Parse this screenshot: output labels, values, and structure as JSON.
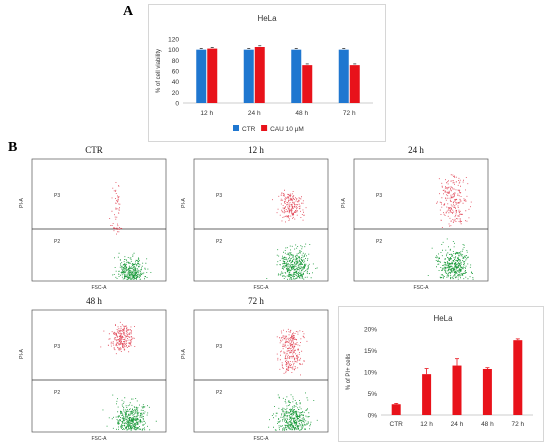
{
  "figure": {
    "panel_a_label": "A",
    "panel_b_label": "B",
    "flow_axis": {
      "x_label": "FSC-A",
      "y_label": "PI-A",
      "gate_upper": "P3",
      "gate_lower": "P2"
    }
  },
  "colors": {
    "blue": "#1f77d0",
    "red": "#e8121a",
    "green": "#1a9a3a",
    "pink": "#e24a5a"
  },
  "flow_plots": [
    {
      "title": "CTR"
    },
    {
      "title": "12 h"
    },
    {
      "title": "24 h"
    },
    {
      "title": "48 h"
    },
    {
      "title": "72 h"
    }
  ],
  "chart_data": [
    {
      "type": "bar",
      "title": "HeLa",
      "ylabel": "% of cell viability",
      "xlabel": "",
      "categories": [
        "12 h",
        "24 h",
        "48 h",
        "72 h"
      ],
      "ylim": [
        0,
        120
      ],
      "yticks": [
        0,
        20,
        40,
        60,
        80,
        100,
        120
      ],
      "series": [
        {
          "name": "CTR",
          "color": "#1f77d0",
          "values": [
            100,
            100,
            100,
            100
          ]
        },
        {
          "name": "CAU 10 µM",
          "color": "#e8121a",
          "values": [
            102,
            105,
            71,
            71
          ]
        }
      ],
      "grid": false,
      "legend": "bottom"
    },
    {
      "type": "bar",
      "title": "HeLa",
      "ylabel": "% of PI+ cells",
      "xlabel": "",
      "categories": [
        "CTR",
        "12 h",
        "24 h",
        "48 h",
        "72 h"
      ],
      "ylim": [
        0,
        0.2
      ],
      "yticks": [
        0,
        0.05,
        0.1,
        0.15,
        0.2
      ],
      "ytick_labels": [
        "0%",
        "5%",
        "10%",
        "15%",
        "20%"
      ],
      "series": [
        {
          "color": "#e8121a",
          "values": [
            0.025,
            0.095,
            0.115,
            0.107,
            0.174
          ]
        }
      ],
      "grid": false
    }
  ]
}
